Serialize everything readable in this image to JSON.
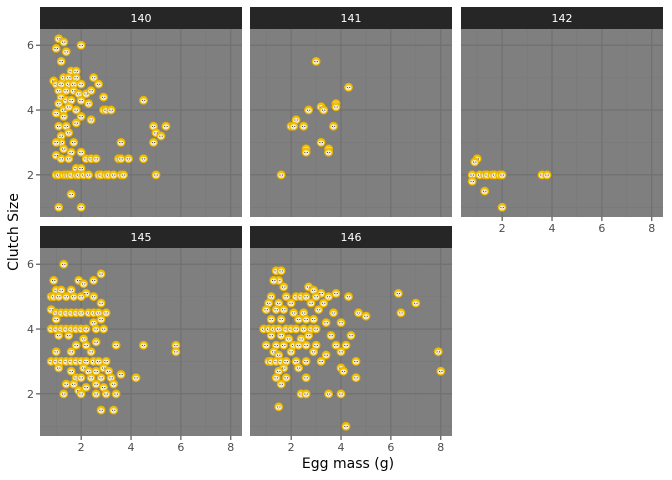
{
  "chart_data": {
    "type": "scatter",
    "xlabel": "Egg mass (g)",
    "ylabel": "Clutch Size",
    "x_ticks": [
      2,
      4,
      6,
      8
    ],
    "y_ticks": [
      2,
      4,
      6
    ],
    "xlim": [
      0.35,
      8.45
    ],
    "ylim": [
      0.7,
      6.5
    ],
    "grid": true,
    "colors": {
      "panel_bg": "#7f7f7f",
      "strip_bg": "#262626",
      "grid_major": "#6f6f6f",
      "grid_minor": "#787878",
      "marker_fill": "#f2c200",
      "marker_face": "#f6f0e0",
      "marker_eye": "#222222"
    },
    "marker_icon": "chick-icon",
    "panels": [
      {
        "label": "140",
        "points": [
          [
            1.1,
            6.2
          ],
          [
            1.3,
            6.1
          ],
          [
            1.0,
            5.9
          ],
          [
            1.4,
            5.8
          ],
          [
            2.0,
            6.0
          ],
          [
            1.2,
            5.5
          ],
          [
            1.6,
            5.2
          ],
          [
            1.8,
            5.2
          ],
          [
            1.3,
            5.0
          ],
          [
            1.5,
            5.0
          ],
          [
            1.8,
            5.0
          ],
          [
            2.5,
            5.0
          ],
          [
            0.9,
            4.9
          ],
          [
            1.0,
            4.8
          ],
          [
            1.2,
            4.8
          ],
          [
            1.5,
            4.8
          ],
          [
            1.7,
            4.8
          ],
          [
            2.0,
            4.8
          ],
          [
            2.7,
            4.8
          ],
          [
            1.1,
            4.6
          ],
          [
            1.4,
            4.6
          ],
          [
            1.7,
            4.6
          ],
          [
            1.9,
            4.5
          ],
          [
            2.2,
            4.5
          ],
          [
            2.4,
            4.6
          ],
          [
            1.2,
            4.4
          ],
          [
            1.4,
            4.3
          ],
          [
            1.6,
            4.3
          ],
          [
            2.0,
            4.3
          ],
          [
            2.3,
            4.2
          ],
          [
            2.9,
            4.4
          ],
          [
            4.5,
            4.3
          ],
          [
            1.1,
            4.2
          ],
          [
            1.3,
            4.0
          ],
          [
            1.5,
            4.1
          ],
          [
            1.8,
            4.0
          ],
          [
            2.9,
            4.0
          ],
          [
            3.0,
            4.0
          ],
          [
            3.2,
            4.0
          ],
          [
            1.0,
            3.9
          ],
          [
            1.3,
            3.8
          ],
          [
            2.0,
            3.8
          ],
          [
            2.4,
            3.7
          ],
          [
            1.1,
            3.5
          ],
          [
            1.4,
            3.5
          ],
          [
            1.8,
            3.6
          ],
          [
            4.9,
            3.5
          ],
          [
            5.4,
            3.5
          ],
          [
            5.0,
            3.3
          ],
          [
            5.2,
            3.2
          ],
          [
            1.2,
            3.2
          ],
          [
            1.5,
            3.3
          ],
          [
            1.7,
            3.0
          ],
          [
            1.2,
            3.0
          ],
          [
            1.0,
            3.0
          ],
          [
            3.6,
            3.0
          ],
          [
            4.9,
            3.0
          ],
          [
            1.3,
            2.8
          ],
          [
            1.6,
            2.7
          ],
          [
            2.0,
            2.7
          ],
          [
            1.0,
            2.6
          ],
          [
            2.2,
            2.5
          ],
          [
            2.4,
            2.5
          ],
          [
            2.6,
            2.5
          ],
          [
            1.2,
            2.5
          ],
          [
            1.5,
            2.5
          ],
          [
            3.5,
            2.5
          ],
          [
            3.6,
            2.5
          ],
          [
            3.9,
            2.5
          ],
          [
            4.5,
            2.5
          ],
          [
            1.8,
            2.2
          ],
          [
            2.0,
            2.2
          ],
          [
            1.0,
            2.0
          ],
          [
            1.1,
            2.0
          ],
          [
            1.3,
            2.0
          ],
          [
            1.4,
            2.0
          ],
          [
            1.5,
            2.0
          ],
          [
            1.6,
            2.0
          ],
          [
            1.8,
            2.0
          ],
          [
            1.9,
            2.0
          ],
          [
            2.1,
            2.0
          ],
          [
            2.3,
            2.0
          ],
          [
            2.7,
            2.0
          ],
          [
            2.8,
            2.0
          ],
          [
            3.0,
            2.0
          ],
          [
            3.1,
            2.0
          ],
          [
            3.3,
            2.0
          ],
          [
            3.6,
            2.0
          ],
          [
            3.7,
            2.0
          ],
          [
            5.0,
            2.0
          ],
          [
            1.6,
            1.4
          ],
          [
            1.1,
            1.0
          ],
          [
            2.0,
            1.0
          ]
        ]
      },
      {
        "label": "141",
        "points": [
          [
            3.0,
            5.5
          ],
          [
            4.3,
            4.7
          ],
          [
            3.8,
            4.2
          ],
          [
            3.8,
            4.1
          ],
          [
            3.2,
            4.1
          ],
          [
            3.3,
            4.0
          ],
          [
            2.7,
            4.0
          ],
          [
            2.2,
            3.7
          ],
          [
            2.0,
            3.5
          ],
          [
            2.1,
            3.5
          ],
          [
            2.5,
            3.5
          ],
          [
            2.5,
            3.5
          ],
          [
            3.7,
            3.5
          ],
          [
            3.2,
            3.0
          ],
          [
            3.5,
            2.8
          ],
          [
            3.5,
            2.7
          ],
          [
            2.6,
            2.8
          ],
          [
            2.6,
            2.7
          ],
          [
            1.6,
            2.0
          ]
        ]
      },
      {
        "label": "142",
        "points": [
          [
            1.0,
            2.5
          ],
          [
            0.9,
            2.4
          ],
          [
            0.8,
            2.0
          ],
          [
            1.1,
            2.0
          ],
          [
            1.3,
            2.0
          ],
          [
            1.4,
            2.0
          ],
          [
            1.6,
            2.0
          ],
          [
            1.7,
            2.0
          ],
          [
            1.9,
            2.0
          ],
          [
            2.0,
            2.0
          ],
          [
            3.6,
            2.0
          ],
          [
            3.8,
            2.0
          ],
          [
            0.8,
            1.8
          ],
          [
            1.3,
            1.5
          ],
          [
            2.0,
            1.0
          ]
        ]
      },
      {
        "label": "145",
        "points": [
          [
            1.3,
            6.0
          ],
          [
            2.8,
            5.7
          ],
          [
            1.9,
            5.5
          ],
          [
            2.1,
            5.4
          ],
          [
            2.5,
            5.5
          ],
          [
            0.9,
            5.5
          ],
          [
            1.0,
            5.2
          ],
          [
            1.2,
            5.2
          ],
          [
            1.6,
            5.2
          ],
          [
            2.2,
            5.1
          ],
          [
            0.8,
            5.0
          ],
          [
            0.9,
            5.0
          ],
          [
            1.1,
            5.0
          ],
          [
            1.4,
            5.0
          ],
          [
            1.7,
            5.0
          ],
          [
            2.0,
            5.0
          ],
          [
            2.5,
            5.0
          ],
          [
            2.8,
            4.8
          ],
          [
            0.8,
            4.6
          ],
          [
            1.0,
            4.5
          ],
          [
            1.2,
            4.5
          ],
          [
            1.4,
            4.5
          ],
          [
            1.6,
            4.5
          ],
          [
            1.8,
            4.5
          ],
          [
            2.0,
            4.5
          ],
          [
            2.3,
            4.5
          ],
          [
            2.5,
            4.5
          ],
          [
            2.7,
            4.5
          ],
          [
            3.0,
            4.5
          ],
          [
            1.0,
            4.3
          ],
          [
            2.8,
            4.3
          ],
          [
            2.5,
            4.2
          ],
          [
            0.8,
            4.0
          ],
          [
            1.0,
            4.0
          ],
          [
            1.2,
            4.0
          ],
          [
            1.4,
            4.0
          ],
          [
            1.6,
            4.0
          ],
          [
            1.8,
            4.0
          ],
          [
            2.0,
            4.0
          ],
          [
            2.2,
            4.0
          ],
          [
            2.6,
            4.0
          ],
          [
            2.9,
            4.0
          ],
          [
            1.1,
            3.8
          ],
          [
            1.5,
            3.8
          ],
          [
            2.1,
            3.7
          ],
          [
            2.6,
            3.6
          ],
          [
            1.8,
            3.5
          ],
          [
            2.2,
            3.5
          ],
          [
            3.4,
            3.5
          ],
          [
            4.5,
            3.5
          ],
          [
            5.8,
            3.5
          ],
          [
            1.0,
            3.3
          ],
          [
            1.6,
            3.3
          ],
          [
            2.4,
            3.3
          ],
          [
            5.8,
            3.3
          ],
          [
            0.8,
            3.0
          ],
          [
            1.0,
            3.0
          ],
          [
            1.2,
            3.0
          ],
          [
            1.4,
            3.0
          ],
          [
            1.6,
            3.0
          ],
          [
            1.8,
            3.0
          ],
          [
            2.0,
            3.0
          ],
          [
            2.2,
            3.0
          ],
          [
            2.5,
            3.0
          ],
          [
            2.7,
            3.0
          ],
          [
            3.0,
            3.0
          ],
          [
            1.1,
            2.8
          ],
          [
            2.1,
            2.8
          ],
          [
            2.6,
            2.7
          ],
          [
            2.9,
            2.8
          ],
          [
            1.6,
            2.7
          ],
          [
            2.3,
            2.7
          ],
          [
            3.1,
            2.7
          ],
          [
            3.6,
            2.6
          ],
          [
            4.2,
            2.5
          ],
          [
            1.8,
            2.5
          ],
          [
            2.0,
            2.5
          ],
          [
            2.4,
            2.5
          ],
          [
            2.8,
            2.5
          ],
          [
            3.2,
            2.5
          ],
          [
            1.4,
            2.3
          ],
          [
            1.7,
            2.3
          ],
          [
            2.2,
            2.2
          ],
          [
            2.6,
            2.3
          ],
          [
            2.9,
            2.2
          ],
          [
            3.3,
            2.3
          ],
          [
            1.9,
            2.1
          ],
          [
            1.3,
            2.0
          ],
          [
            2.0,
            2.0
          ],
          [
            2.6,
            2.0
          ],
          [
            3.0,
            2.0
          ],
          [
            3.4,
            2.0
          ],
          [
            2.8,
            1.5
          ],
          [
            3.3,
            1.5
          ]
        ]
      },
      {
        "label": "146",
        "points": [
          [
            1.4,
            5.8
          ],
          [
            1.6,
            5.8
          ],
          [
            1.5,
            5.5
          ],
          [
            1.3,
            5.5
          ],
          [
            1.7,
            5.3
          ],
          [
            2.7,
            5.3
          ],
          [
            2.9,
            5.2
          ],
          [
            3.2,
            5.1
          ],
          [
            3.8,
            5.1
          ],
          [
            6.3,
            5.1
          ],
          [
            1.2,
            5.0
          ],
          [
            1.8,
            5.0
          ],
          [
            2.2,
            5.0
          ],
          [
            2.4,
            5.0
          ],
          [
            2.6,
            5.0
          ],
          [
            3.0,
            5.0
          ],
          [
            3.5,
            5.0
          ],
          [
            4.3,
            5.0
          ],
          [
            1.1,
            4.8
          ],
          [
            1.5,
            4.8
          ],
          [
            2.0,
            4.8
          ],
          [
            2.8,
            4.8
          ],
          [
            3.3,
            4.8
          ],
          [
            7.0,
            4.8
          ],
          [
            1.0,
            4.6
          ],
          [
            1.4,
            4.6
          ],
          [
            1.7,
            4.6
          ],
          [
            2.1,
            4.5
          ],
          [
            2.5,
            4.5
          ],
          [
            3.1,
            4.6
          ],
          [
            3.7,
            4.5
          ],
          [
            4.7,
            4.5
          ],
          [
            5.0,
            4.4
          ],
          [
            6.4,
            4.5
          ],
          [
            1.2,
            4.3
          ],
          [
            1.6,
            4.3
          ],
          [
            2.3,
            4.3
          ],
          [
            2.6,
            4.3
          ],
          [
            2.9,
            4.3
          ],
          [
            3.4,
            4.2
          ],
          [
            4.0,
            4.2
          ],
          [
            0.9,
            4.0
          ],
          [
            1.1,
            4.0
          ],
          [
            1.3,
            4.0
          ],
          [
            1.5,
            4.0
          ],
          [
            1.8,
            4.0
          ],
          [
            2.0,
            4.0
          ],
          [
            2.2,
            4.0
          ],
          [
            2.5,
            4.0
          ],
          [
            2.8,
            4.0
          ],
          [
            3.0,
            4.0
          ],
          [
            1.2,
            3.8
          ],
          [
            1.6,
            3.8
          ],
          [
            1.9,
            3.7
          ],
          [
            2.4,
            3.7
          ],
          [
            2.7,
            3.8
          ],
          [
            3.6,
            3.8
          ],
          [
            4.4,
            3.8
          ],
          [
            1.0,
            3.5
          ],
          [
            1.4,
            3.5
          ],
          [
            1.7,
            3.5
          ],
          [
            2.1,
            3.5
          ],
          [
            2.3,
            3.5
          ],
          [
            2.6,
            3.5
          ],
          [
            3.0,
            3.5
          ],
          [
            3.8,
            3.5
          ],
          [
            4.2,
            3.5
          ],
          [
            1.3,
            3.3
          ],
          [
            1.5,
            3.2
          ],
          [
            2.0,
            3.3
          ],
          [
            2.9,
            3.3
          ],
          [
            3.4,
            3.2
          ],
          [
            4.0,
            3.3
          ],
          [
            7.9,
            3.3
          ],
          [
            1.1,
            3.0
          ],
          [
            1.2,
            3.0
          ],
          [
            1.4,
            3.0
          ],
          [
            1.6,
            3.0
          ],
          [
            1.8,
            3.0
          ],
          [
            2.2,
            3.0
          ],
          [
            2.6,
            3.0
          ],
          [
            3.2,
            3.0
          ],
          [
            4.6,
            3.0
          ],
          [
            1.7,
            2.8
          ],
          [
            2.3,
            2.8
          ],
          [
            4.0,
            2.8
          ],
          [
            4.1,
            2.7
          ],
          [
            1.5,
            2.7
          ],
          [
            1.4,
            2.5
          ],
          [
            1.8,
            2.5
          ],
          [
            2.6,
            2.5
          ],
          [
            4.6,
            2.5
          ],
          [
            1.6,
            2.3
          ],
          [
            8.0,
            2.7
          ],
          [
            2.4,
            2.0
          ],
          [
            2.6,
            2.0
          ],
          [
            3.5,
            2.0
          ],
          [
            4.0,
            2.0
          ],
          [
            1.5,
            1.6
          ],
          [
            4.2,
            1.0
          ]
        ]
      }
    ]
  }
}
